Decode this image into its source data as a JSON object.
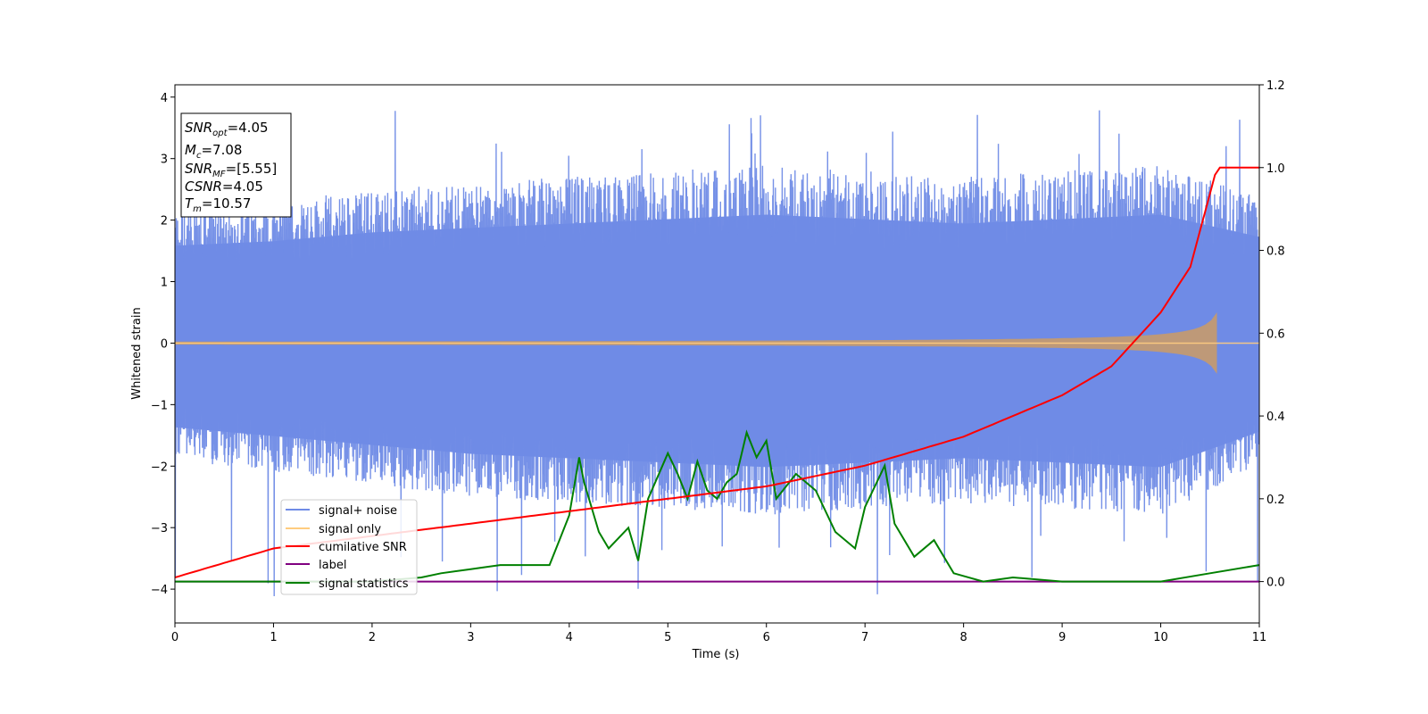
{
  "chart_data": {
    "type": "line",
    "xlabel": "Time (s)",
    "ylabel": "Whitened strain",
    "xlim": [
      0,
      11
    ],
    "ylim_left": [
      -4.55,
      4.2
    ],
    "ylim_right": [
      -0.1,
      1.2
    ],
    "xticks": [
      0,
      1,
      2,
      3,
      4,
      5,
      6,
      7,
      8,
      9,
      10,
      11
    ],
    "yticks_left": [
      -4,
      -3,
      -2,
      -1,
      0,
      1,
      2,
      3,
      4
    ],
    "yticks_left_labels": [
      "−4",
      "−3",
      "−2",
      "−1",
      "0",
      "1",
      "2",
      "3",
      "4"
    ],
    "yticks_right": [
      0.0,
      0.2,
      0.4,
      0.6,
      0.8,
      1.0,
      1.2
    ],
    "yticks_right_labels": [
      "0.0",
      "0.2",
      "0.4",
      "0.6",
      "0.8",
      "1.0",
      "1.2"
    ],
    "legend_position": "lower-left",
    "info_box": {
      "snr_opt": "4.05",
      "mc": "7.08",
      "snr_mf": "[5.55]",
      "csnr": "4.05",
      "tm": "10.57"
    },
    "series": [
      {
        "name": "signal+ noise",
        "axis": "left",
        "color": "#6f8be6",
        "note_envelope_x": [
          0,
          1,
          2,
          3,
          4,
          5,
          6,
          7,
          8,
          9,
          10,
          11
        ],
        "upper_typical": [
          2.2,
          2.3,
          2.5,
          2.6,
          2.7,
          2.8,
          2.9,
          2.8,
          2.7,
          2.8,
          2.9,
          2.4
        ],
        "lower_typical": [
          -1.9,
          -2.1,
          -2.3,
          -2.5,
          -2.6,
          -2.7,
          -2.8,
          -2.7,
          -2.6,
          -2.7,
          -2.8,
          -2.0
        ],
        "spike_max": 3.8,
        "spike_min": -4.15
      },
      {
        "name": "signal only",
        "axis": "left",
        "color": "#ffcc7f",
        "t_merge": 10.57,
        "amplitude_at_merge": 0.5
      },
      {
        "name": "cumilative SNR",
        "axis": "right",
        "color": "#ff0000",
        "x": [
          0,
          1,
          2,
          3,
          4,
          5,
          6,
          7,
          8,
          9,
          9.5,
          10,
          10.3,
          10.57,
          11
        ],
        "y": [
          0.01,
          0.08,
          0.11,
          0.14,
          0.17,
          0.2,
          0.23,
          0.28,
          0.35,
          0.45,
          0.52,
          0.65,
          0.76,
          1.0,
          1.0
        ]
      },
      {
        "name": "label",
        "axis": "right",
        "color": "#800080",
        "x": [
          0,
          11
        ],
        "y": [
          0,
          0
        ]
      },
      {
        "name": "signal statistics",
        "axis": "right",
        "color": "#008000",
        "x": [
          0,
          0.5,
          1,
          1.5,
          2,
          2.5,
          2.7,
          3,
          3.3,
          3.5,
          3.8,
          3.9,
          4.0,
          4.1,
          4.15,
          4.3,
          4.4,
          4.6,
          4.7,
          4.8,
          5.0,
          5.1,
          5.2,
          5.3,
          5.4,
          5.5,
          5.6,
          5.7,
          5.8,
          5.9,
          6.0,
          6.1,
          6.3,
          6.5,
          6.7,
          6.9,
          7.0,
          7.2,
          7.3,
          7.5,
          7.7,
          7.9,
          8.2,
          8.5,
          9.0,
          9.5,
          10.0,
          10.5,
          11.0
        ],
        "y": [
          0.0,
          0.0,
          0.0,
          0.0,
          0.0,
          0.01,
          0.02,
          0.03,
          0.04,
          0.04,
          0.04,
          0.1,
          0.16,
          0.3,
          0.24,
          0.12,
          0.08,
          0.13,
          0.05,
          0.2,
          0.31,
          0.26,
          0.2,
          0.29,
          0.22,
          0.2,
          0.24,
          0.26,
          0.36,
          0.3,
          0.34,
          0.2,
          0.26,
          0.22,
          0.12,
          0.08,
          0.18,
          0.28,
          0.14,
          0.06,
          0.1,
          0.02,
          0.0,
          0.01,
          0.0,
          0.0,
          0.0,
          0.02,
          0.04
        ]
      }
    ]
  }
}
